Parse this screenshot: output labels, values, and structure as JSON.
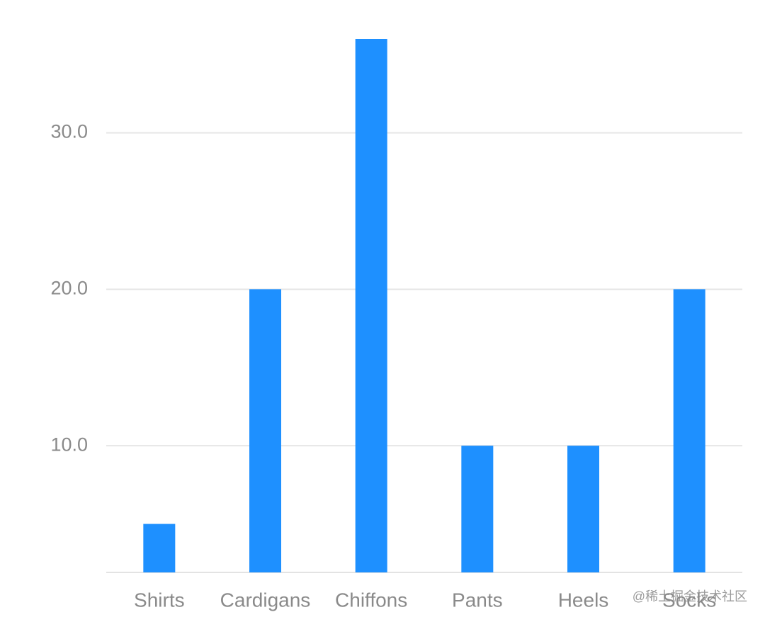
{
  "chart_data": {
    "type": "bar",
    "categories": [
      "Shirts",
      "Cardigans",
      "Chiffons",
      "Pants",
      "Heels",
      "Socks"
    ],
    "values": [
      5,
      20,
      36,
      10,
      10,
      20
    ],
    "color": "#1e90ff",
    "ylim": [
      1.9,
      36
    ],
    "yticks": [
      {
        "value": 10,
        "label": "10.0"
      },
      {
        "value": 20,
        "label": "20.0"
      },
      {
        "value": 30,
        "label": "30.0"
      }
    ],
    "grid": true,
    "watermark": "@稀土掘金技术社区"
  }
}
